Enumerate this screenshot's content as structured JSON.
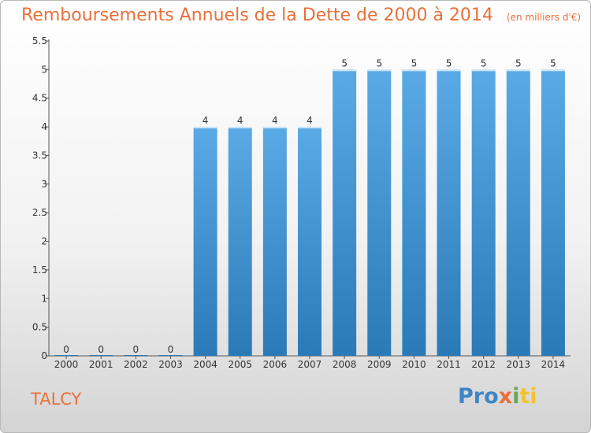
{
  "header": {
    "title": "Remboursements Annuels de la Dette de 2000 à 2014",
    "subtitle": "(en milliers d'€)"
  },
  "footer": {
    "commune": "TALCY",
    "logo": [
      "Pro",
      "x",
      "i",
      "ti"
    ]
  },
  "colors": {
    "bar_top": "#5aaae6",
    "bar_bottom": "#2a7ab8",
    "accent": "#e8703a"
  },
  "chart_data": {
    "type": "bar",
    "title": "Remboursements Annuels de la Dette de 2000 à 2014",
    "subtitle": "(en milliers d'€)",
    "xlabel": "",
    "ylabel": "",
    "categories": [
      "2000",
      "2001",
      "2002",
      "2003",
      "2004",
      "2005",
      "2006",
      "2007",
      "2008",
      "2009",
      "2010",
      "2011",
      "2012",
      "2013",
      "2014"
    ],
    "values": [
      0,
      0,
      0,
      0,
      4,
      4,
      4,
      4,
      5,
      5,
      5,
      5,
      5,
      5,
      5
    ],
    "data_labels": [
      "0",
      "0",
      "0",
      "0",
      "4",
      "4",
      "4",
      "4",
      "5",
      "5",
      "5",
      "5",
      "5",
      "5",
      "5"
    ],
    "ylim": [
      0,
      5.5
    ],
    "yticks": [
      "0",
      "0.5",
      "1",
      "1.5",
      "2",
      "2.5",
      "3",
      "3.5",
      "4",
      "4.5",
      "5",
      "5.5"
    ],
    "grid": false,
    "legend": "none"
  }
}
